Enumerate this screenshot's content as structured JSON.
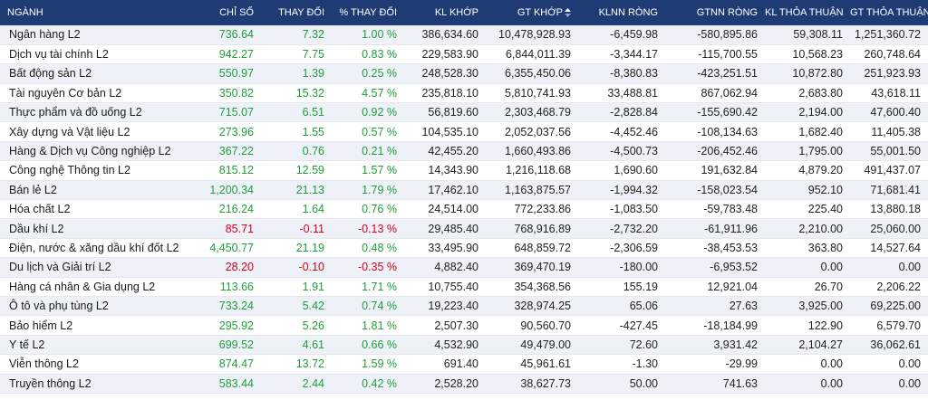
{
  "headers": {
    "nganh": "NGÀNH",
    "chi_so": "CHỈ SỐ",
    "thay_doi": "THAY ĐỔI",
    "pct_thay_doi": "% THAY ĐỔI",
    "kl_khop": "KL KHỚP",
    "gt_khop": "GT KHỚP",
    "klnn_rong": "KLNN RÒNG",
    "gtnn_rong": "GTNN RÒNG",
    "kl_thoa_thuan": "KL THỎA THUẬN",
    "gt_thoa_thuan": "GT THỎA THUẬN"
  },
  "colors": {
    "header_bg": "#1f3b73",
    "up": "#1e9e3a",
    "down": "#d0021b"
  },
  "rows": [
    {
      "name": "Ngân hàng L2",
      "index": "736.64",
      "change": "7.32",
      "pct": "1.00 %",
      "kl_khop": "386,634.60",
      "gt_khop": "10,478,928.93",
      "klnn": "-6,459.98",
      "gtnn": "-580,895.86",
      "kl_tt": "59,308.11",
      "gt_tt": "1,251,360.72",
      "dir": "up"
    },
    {
      "name": "Dịch vụ tài chính L2",
      "index": "942.27",
      "change": "7.75",
      "pct": "0.83 %",
      "kl_khop": "229,583.90",
      "gt_khop": "6,844,011.39",
      "klnn": "-3,344.17",
      "gtnn": "-115,700.55",
      "kl_tt": "10,568.23",
      "gt_tt": "260,748.64",
      "dir": "up"
    },
    {
      "name": "Bất động sản L2",
      "index": "550.97",
      "change": "1.39",
      "pct": "0.25 %",
      "kl_khop": "248,528.30",
      "gt_khop": "6,355,450.06",
      "klnn": "-8,380.83",
      "gtnn": "-423,251.51",
      "kl_tt": "10,872.80",
      "gt_tt": "251,923.93",
      "dir": "up"
    },
    {
      "name": "Tài nguyên Cơ bản L2",
      "index": "350.82",
      "change": "15.32",
      "pct": "4.57 %",
      "kl_khop": "235,818.10",
      "gt_khop": "5,810,741.93",
      "klnn": "33,488.81",
      "gtnn": "867,062.94",
      "kl_tt": "2,683.80",
      "gt_tt": "43,618.11",
      "dir": "up"
    },
    {
      "name": "Thực phẩm và đồ uống L2",
      "index": "715.07",
      "change": "6.51",
      "pct": "0.92 %",
      "kl_khop": "56,819.60",
      "gt_khop": "2,303,468.79",
      "klnn": "-2,828.84",
      "gtnn": "-155,690.42",
      "kl_tt": "2,194.00",
      "gt_tt": "47,600.40",
      "dir": "up"
    },
    {
      "name": "Xây dựng và Vật liệu L2",
      "index": "273.96",
      "change": "1.55",
      "pct": "0.57 %",
      "kl_khop": "104,535.10",
      "gt_khop": "2,052,037.56",
      "klnn": "-4,452.46",
      "gtnn": "-108,134.63",
      "kl_tt": "1,682.40",
      "gt_tt": "11,405.38",
      "dir": "up"
    },
    {
      "name": "Hàng & Dịch vụ Công nghiệp L2",
      "index": "367.22",
      "change": "0.76",
      "pct": "0.21 %",
      "kl_khop": "42,455.20",
      "gt_khop": "1,660,493.86",
      "klnn": "-4,500.73",
      "gtnn": "-206,452.46",
      "kl_tt": "1,795.00",
      "gt_tt": "55,001.50",
      "dir": "up"
    },
    {
      "name": "Công nghệ Thông tin L2",
      "index": "815.12",
      "change": "12.59",
      "pct": "1.57 %",
      "kl_khop": "14,343.90",
      "gt_khop": "1,216,118.68",
      "klnn": "1,690.60",
      "gtnn": "191,632.84",
      "kl_tt": "4,879.20",
      "gt_tt": "491,437.07",
      "dir": "up"
    },
    {
      "name": "Bán lẻ L2",
      "index": "1,200.34",
      "change": "21.13",
      "pct": "1.79 %",
      "kl_khop": "17,462.10",
      "gt_khop": "1,163,875.57",
      "klnn": "-1,994.32",
      "gtnn": "-158,023.54",
      "kl_tt": "952.10",
      "gt_tt": "71,681.41",
      "dir": "up"
    },
    {
      "name": "Hóa chất L2",
      "index": "216.24",
      "change": "1.64",
      "pct": "0.76 %",
      "kl_khop": "24,514.00",
      "gt_khop": "772,233.86",
      "klnn": "-1,083.50",
      "gtnn": "-59,783.48",
      "kl_tt": "225.40",
      "gt_tt": "13,880.18",
      "dir": "up"
    },
    {
      "name": "Dầu khí L2",
      "index": "85.71",
      "change": "-0.11",
      "pct": "-0.13 %",
      "kl_khop": "29,485.40",
      "gt_khop": "768,916.89",
      "klnn": "-2,732.20",
      "gtnn": "-61,911.96",
      "kl_tt": "2,210.00",
      "gt_tt": "25,060.00",
      "dir": "down"
    },
    {
      "name": "Điện, nước & xăng dầu khí đốt L2",
      "index": "4,450.77",
      "change": "21.19",
      "pct": "0.48 %",
      "kl_khop": "33,495.90",
      "gt_khop": "648,859.72",
      "klnn": "-2,306.59",
      "gtnn": "-38,453.53",
      "kl_tt": "363.80",
      "gt_tt": "14,527.64",
      "dir": "up"
    },
    {
      "name": "Du lịch và Giải trí L2",
      "index": "28.20",
      "change": "-0.10",
      "pct": "-0.35 %",
      "kl_khop": "4,882.40",
      "gt_khop": "369,470.19",
      "klnn": "-180.00",
      "gtnn": "-6,953.52",
      "kl_tt": "0.00",
      "gt_tt": "0.00",
      "dir": "down"
    },
    {
      "name": "Hàng cá nhân & Gia dụng L2",
      "index": "113.66",
      "change": "1.91",
      "pct": "1.71 %",
      "kl_khop": "10,755.40",
      "gt_khop": "354,368.56",
      "klnn": "155.19",
      "gtnn": "12,921.04",
      "kl_tt": "26.70",
      "gt_tt": "2,206.22",
      "dir": "up"
    },
    {
      "name": "Ô tô và phụ tùng L2",
      "index": "733.24",
      "change": "5.42",
      "pct": "0.74 %",
      "kl_khop": "19,223.40",
      "gt_khop": "328,974.25",
      "klnn": "65.06",
      "gtnn": "27.63",
      "kl_tt": "3,925.00",
      "gt_tt": "69,225.00",
      "dir": "up"
    },
    {
      "name": "Bảo hiểm L2",
      "index": "295.92",
      "change": "5.26",
      "pct": "1.81 %",
      "kl_khop": "2,507.30",
      "gt_khop": "90,560.70",
      "klnn": "-427.45",
      "gtnn": "-18,184.99",
      "kl_tt": "122.90",
      "gt_tt": "6,579.70",
      "dir": "up"
    },
    {
      "name": "Y tế L2",
      "index": "699.52",
      "change": "4.61",
      "pct": "0.66 %",
      "kl_khop": "4,532.90",
      "gt_khop": "49,479.00",
      "klnn": "72.60",
      "gtnn": "3,931.42",
      "kl_tt": "2,104.27",
      "gt_tt": "36,062.61",
      "dir": "up"
    },
    {
      "name": "Viễn thông L2",
      "index": "874.47",
      "change": "13.72",
      "pct": "1.59 %",
      "kl_khop": "691.40",
      "gt_khop": "45,961.61",
      "klnn": "-1.30",
      "gtnn": "-29.99",
      "kl_tt": "0.00",
      "gt_tt": "0.00",
      "dir": "up"
    },
    {
      "name": "Truyền thông L2",
      "index": "583.44",
      "change": "2.44",
      "pct": "0.42 %",
      "kl_khop": "2,528.20",
      "gt_khop": "38,627.73",
      "klnn": "50.00",
      "gtnn": "741.63",
      "kl_tt": "0.00",
      "gt_tt": "0.00",
      "dir": "up"
    }
  ]
}
